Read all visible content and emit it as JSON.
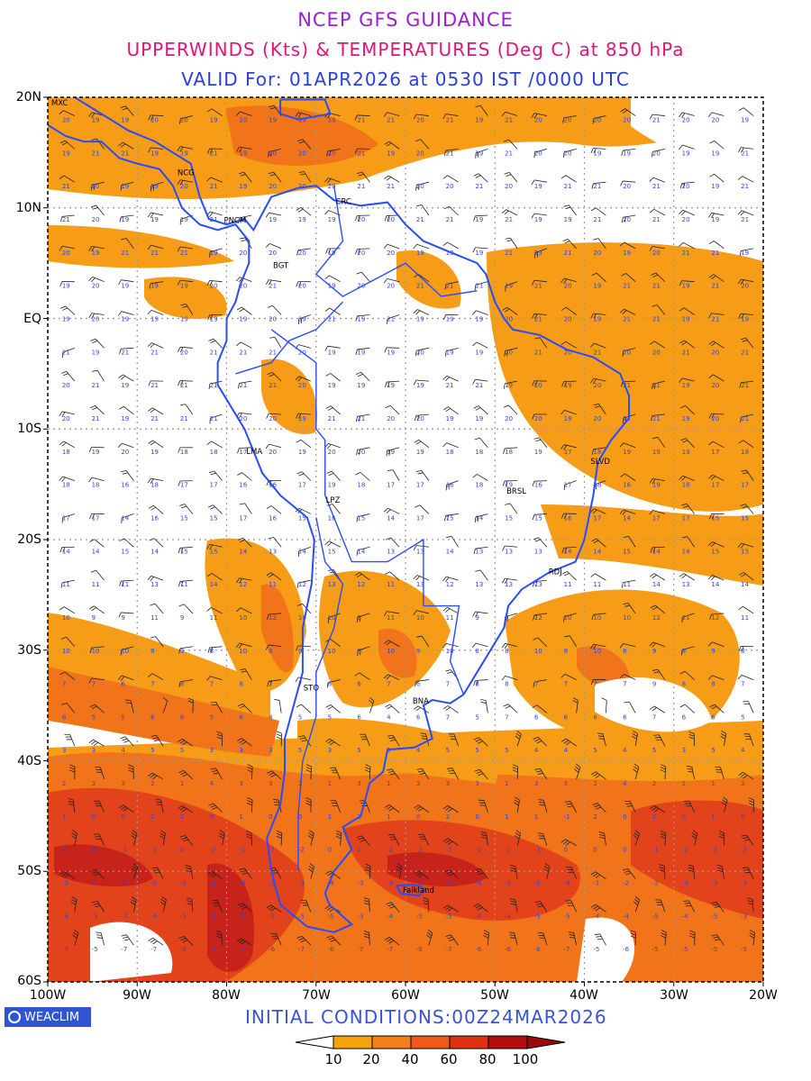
{
  "titles": {
    "line1": "NCEP GFS GUIDANCE",
    "line2": "UPPERWINDS (Kts) & TEMPERATURES (Deg C) at 850 hPa",
    "line3": "VALID For: 01APR2026 at 0530 IST /0000 UTC"
  },
  "axes": {
    "lat_labels": [
      "20N",
      "10N",
      "EQ",
      "10S",
      "20S",
      "30S",
      "40S",
      "50S",
      "60S"
    ],
    "lon_labels": [
      "100W",
      "90W",
      "80W",
      "70W",
      "60W",
      "50W",
      "40W",
      "30W",
      "20W"
    ],
    "lat_range": [
      -60,
      20
    ],
    "lon_range": [
      -100,
      -20
    ]
  },
  "stations": [
    {
      "label": "MXC",
      "lon": -98.8,
      "lat": 19.5
    },
    {
      "label": "NCG",
      "lon": -84.7,
      "lat": 13.2
    },
    {
      "label": "CRC",
      "lon": -67.0,
      "lat": 10.6
    },
    {
      "label": "PNCM",
      "lon": -79.5,
      "lat": 8.9
    },
    {
      "label": "BGT",
      "lon": -74.0,
      "lat": 4.8
    },
    {
      "label": "LMA",
      "lon": -77.0,
      "lat": -12.0
    },
    {
      "label": "LPZ",
      "lon": -68.1,
      "lat": -16.4
    },
    {
      "label": "SLVD",
      "lon": -38.5,
      "lat": -12.9
    },
    {
      "label": "BRSL",
      "lon": -47.9,
      "lat": -15.6
    },
    {
      "label": "RDJ",
      "lon": -43.2,
      "lat": -22.9
    },
    {
      "label": "STO",
      "lon": -70.6,
      "lat": -33.4
    },
    {
      "label": "BNA",
      "lon": -58.4,
      "lat": -34.6
    },
    {
      "label": "Falkland",
      "lon": -59.5,
      "lat": -51.7
    }
  ],
  "footer": {
    "logo_text": "WEACLIM",
    "initial_conditions": "INITIAL CONDITIONS:00Z24MAR2026"
  },
  "colorbar": {
    "labels": [
      "10",
      "20",
      "40",
      "60",
      "80",
      "100"
    ],
    "colors": [
      "#f7a20a",
      "#f47f1a",
      "#ef5b16",
      "#dc3210",
      "#b40d0d"
    ]
  },
  "colors": {
    "coast": "#2b4bff",
    "wind_low": "#f79c16",
    "wind_mid": "#f1741a",
    "wind_high": "#e3431a",
    "wind_max": "#c8231a",
    "grid": "#9a9a9a"
  }
}
